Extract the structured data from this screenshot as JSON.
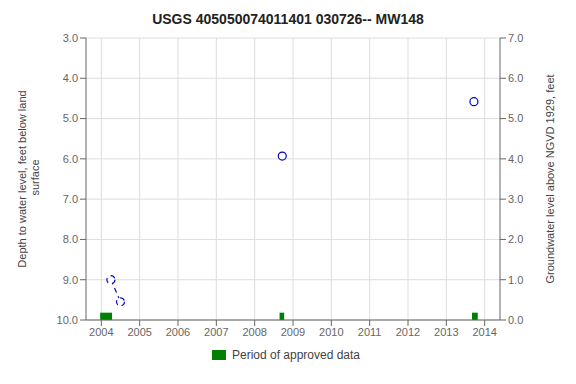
{
  "chart_data": {
    "type": "scatter",
    "title": "USGS 405050074011401 030726-- MW148",
    "y_label": "Depth to water level, feet below land\n surface",
    "y2_label": "Groundwater level above NGVD 1929, feet",
    "x": [
      2004.25,
      2004.5,
      2008.72,
      2013.72
    ],
    "series": [
      {
        "values": [
          9.0,
          9.55,
          null,
          null
        ],
        "color": "#0000CC",
        "marker": "circle",
        "line_style": "dashed"
      },
      {
        "values": [
          null,
          null,
          5.93,
          4.58
        ],
        "color": "#0000CC",
        "marker": "circle",
        "line_style": "none"
      }
    ],
    "approved_periods": {
      "name": "Period of approved data",
      "color": "#008000",
      "x_start": [
        2003.97,
        2008.65,
        2013.67
      ],
      "x_end": [
        2004.28,
        2008.77,
        2013.82
      ]
    },
    "xlim": [
      2003.6,
      2014.4
    ],
    "xticks": [
      2004,
      2005,
      2006,
      2007,
      2008,
      2009,
      2010,
      2011,
      2012,
      2013,
      2014
    ],
    "ylim": [
      10.0,
      3.0
    ],
    "yticks": [
      {
        "value": 3,
        "label": "3.0"
      },
      {
        "value": 4,
        "label": "4.0"
      },
      {
        "value": 5,
        "label": "5.0"
      },
      {
        "value": 6,
        "label": "6.0"
      },
      {
        "value": 7,
        "label": "7.0"
      },
      {
        "value": 8,
        "label": "8.0"
      },
      {
        "value": 9,
        "label": "9.0"
      },
      {
        "value": 10,
        "label": "10.0"
      }
    ],
    "y2lim": [
      0.0,
      7.0
    ],
    "y2ticks": [
      {
        "value": 0,
        "label": "0.0"
      },
      {
        "value": 1,
        "label": "1.0"
      },
      {
        "value": 2,
        "label": "2.0"
      },
      {
        "value": 3,
        "label": "3.0"
      },
      {
        "value": 4,
        "label": "4.0"
      },
      {
        "value": 5,
        "label": "5.0"
      },
      {
        "value": 6,
        "label": "6.0"
      },
      {
        "value": 7,
        "label": "7.0"
      }
    ],
    "grid": true,
    "legend": "bottom"
  }
}
